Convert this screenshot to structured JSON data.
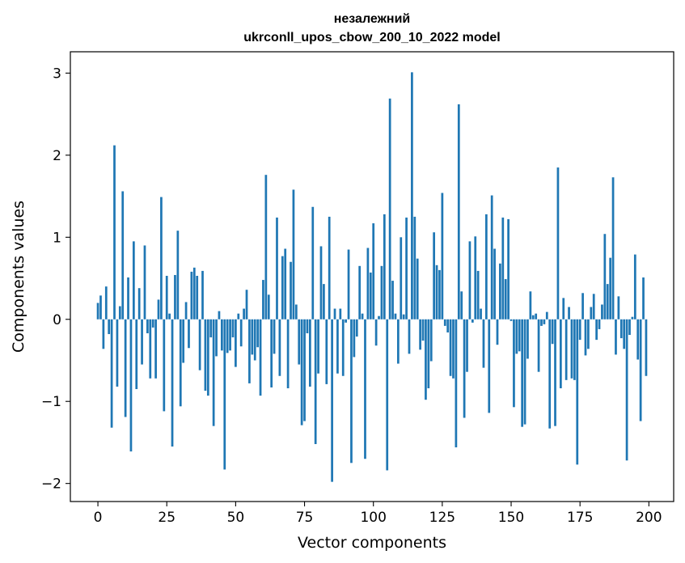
{
  "chart_data": {
    "type": "bar",
    "title_line1": "незалежний",
    "title_line2": "ukrconll_upos_cbow_200_10_2022 model",
    "xlabel": "Vector components",
    "ylabel": "Components values",
    "xlim": [
      -10,
      209
    ],
    "ylim": [
      -2.22,
      3.26
    ],
    "xticks": [
      0,
      25,
      50,
      75,
      100,
      125,
      150,
      175,
      200
    ],
    "yticks": [
      -2,
      -1,
      0,
      1,
      2,
      3
    ],
    "ytick_labels": [
      "−2",
      "−1",
      "0",
      "1",
      "2",
      "3"
    ],
    "grid": false,
    "bar_color": "#1f77b4",
    "values": [
      0.2,
      0.29,
      -0.36,
      0.4,
      -0.18,
      -1.32,
      2.12,
      -0.82,
      0.16,
      1.56,
      -1.19,
      0.51,
      -1.61,
      0.95,
      -0.85,
      0.38,
      -0.55,
      0.9,
      -0.17,
      -0.72,
      -0.1,
      -0.72,
      0.24,
      1.49,
      -1.12,
      0.53,
      0.07,
      -1.55,
      0.54,
      1.08,
      -1.06,
      -0.53,
      0.21,
      -0.35,
      0.58,
      0.63,
      0.53,
      -0.62,
      0.59,
      -0.87,
      -0.93,
      -0.22,
      -1.3,
      -0.45,
      0.1,
      -0.38,
      -1.83,
      -0.41,
      -0.38,
      -0.22,
      -0.58,
      0.07,
      -0.33,
      0.13,
      0.36,
      -0.78,
      -0.43,
      -0.5,
      -0.34,
      -0.93,
      0.48,
      1.76,
      0.3,
      -0.83,
      -0.42,
      1.24,
      -0.69,
      0.77,
      0.86,
      -0.84,
      0.7,
      1.58,
      0.18,
      -0.55,
      -1.29,
      -1.24,
      -0.17,
      -0.82,
      1.37,
      -1.52,
      -0.66,
      0.89,
      0.43,
      -0.79,
      1.25,
      -1.98,
      0.13,
      -0.66,
      0.13,
      -0.69,
      -0.04,
      0.85,
      -1.75,
      -0.46,
      -0.21,
      0.65,
      0.07,
      -1.7,
      0.87,
      0.57,
      1.17,
      -0.32,
      0.04,
      0.65,
      1.28,
      -1.84,
      2.69,
      0.47,
      0.07,
      -0.54,
      1.0,
      0.06,
      1.24,
      -0.42,
      3.01,
      1.25,
      0.74,
      -0.37,
      -0.26,
      -0.98,
      -0.84,
      -0.51,
      1.06,
      0.66,
      0.6,
      1.54,
      -0.08,
      -0.16,
      -0.69,
      -0.72,
      -1.56,
      2.62,
      0.34,
      -1.2,
      -0.64,
      0.95,
      -0.04,
      1.01,
      0.59,
      0.13,
      -0.59,
      1.28,
      -1.14,
      1.51,
      0.86,
      -0.31,
      0.68,
      1.24,
      0.49,
      1.22,
      -0.02,
      -1.07,
      -0.42,
      -0.39,
      -1.31,
      -1.28,
      -0.48,
      0.34,
      0.05,
      0.07,
      -0.64,
      -0.08,
      -0.06,
      0.09,
      -1.33,
      -0.3,
      -1.3,
      1.85,
      -0.84,
      0.26,
      -0.74,
      0.15,
      -0.72,
      -0.74,
      -1.77,
      -0.25,
      0.32,
      -0.44,
      -0.36,
      0.15,
      0.31,
      -0.25,
      -0.12,
      0.18,
      1.04,
      0.43,
      0.75,
      1.73,
      -0.43,
      0.28,
      -0.23,
      -0.36,
      -1.72,
      -0.19,
      0.03,
      0.79,
      -0.49,
      -1.24,
      0.51,
      -0.69
    ]
  }
}
